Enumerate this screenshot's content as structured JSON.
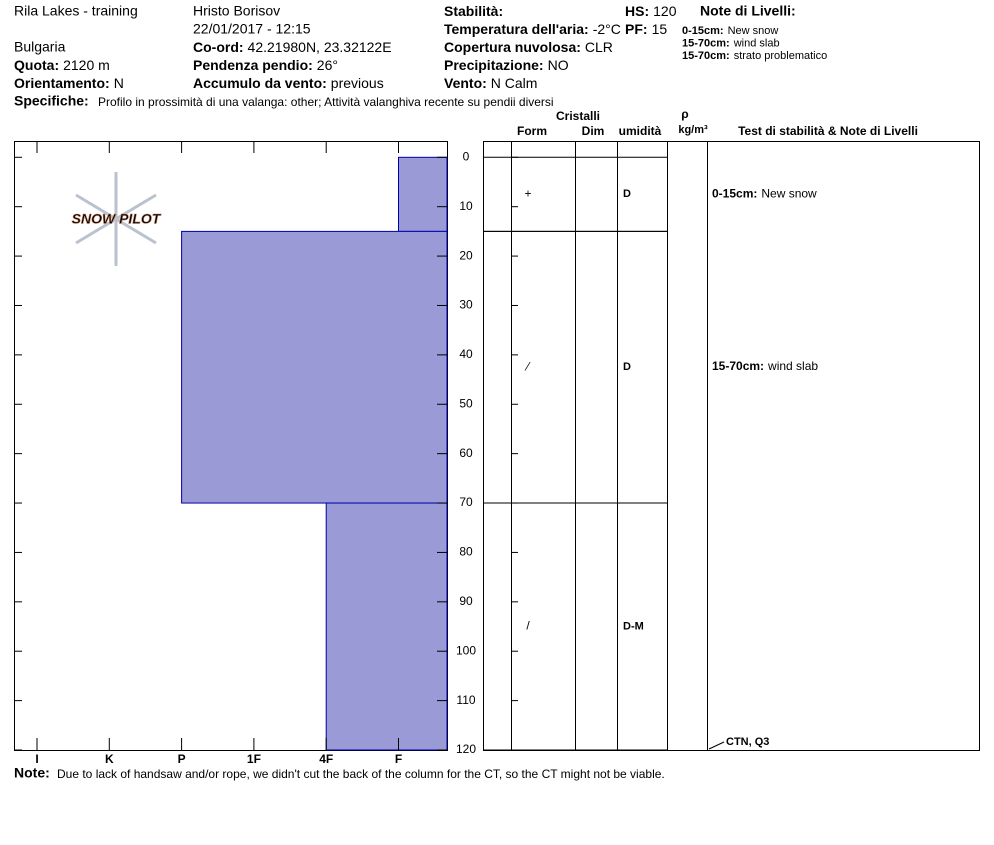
{
  "header": {
    "location": "Rila Lakes - training",
    "observer": "Hristo Borisov",
    "datetime": "22/01/2017 - 12:15",
    "country": "Bulgaria",
    "fields": [
      {
        "label": "Quota:",
        "value": "2120 m"
      },
      {
        "label": "Orientamento:",
        "value": "N"
      },
      {
        "label": "Co-ord:",
        "value": "42.21980N, 23.32122E"
      },
      {
        "label": "Pendenza pendio:",
        "value": "26°"
      },
      {
        "label": "Accumulo da vento:",
        "value": "previous"
      },
      {
        "label": "Stabilità:",
        "value": ""
      },
      {
        "label": "Temperatura dell'aria:",
        "value": "-2°C"
      },
      {
        "label": "Copertura nuvolosa:",
        "value": "CLR"
      },
      {
        "label": "Precipitazione:",
        "value": "NO"
      },
      {
        "label": "Vento:",
        "value": "N Calm"
      },
      {
        "label": "HS:",
        "value": "120"
      },
      {
        "label": "PF:",
        "value": "15"
      }
    ],
    "level_notes_title": "Note di Livelli:",
    "level_notes": [
      {
        "range": "0-15cm:",
        "text": "New snow"
      },
      {
        "range": "15-70cm:",
        "text": "wind slab"
      },
      {
        "range": "15-70cm:",
        "text": "strato problematico"
      }
    ],
    "specifics_label": "Specifiche:",
    "specifics": "Profilo in prossimità di una valanga: other; Attività valanghiva recente su pendii diversi"
  },
  "chart_data": {
    "type": "snow-profile",
    "logo": "SNOW PILOT",
    "hardness_scale": [
      "I",
      "K",
      "P",
      "1F",
      "4F",
      "F"
    ],
    "ylim": [
      -3.3,
      120
    ],
    "yticks": [
      0,
      10,
      20,
      30,
      40,
      50,
      60,
      70,
      80,
      90,
      100,
      110,
      120
    ],
    "columns": {
      "crystals": "Cristalli",
      "form": "Form",
      "dim": "Dim",
      "wetness": "umidità",
      "rho": "ρ",
      "rho_unit": "kg/m³",
      "notes": "Test di stabilità & Note di Livelli"
    },
    "layers": [
      {
        "top": 0,
        "bottom": 15,
        "hardness": "F",
        "form": "+",
        "wetness": "D",
        "note_range": "0-15cm:",
        "note": "New snow"
      },
      {
        "top": 15,
        "bottom": 70,
        "hardness": "P",
        "form": "⁄",
        "wetness": "D",
        "note_range": "15-70cm:",
        "note": "wind slab"
      },
      {
        "top": 70,
        "bottom": 120,
        "hardness": "4F",
        "form": "/",
        "wetness": "D-M"
      }
    ],
    "tests": [
      {
        "depth": 120,
        "label": "CTN, Q3"
      }
    ],
    "bar_color": "#9a9ad6"
  },
  "footer": {
    "label": "Note:",
    "text": "Due to lack of handsaw and/or rope, we didn't cut the back of the column for the CT, so the CT might not be viable."
  }
}
